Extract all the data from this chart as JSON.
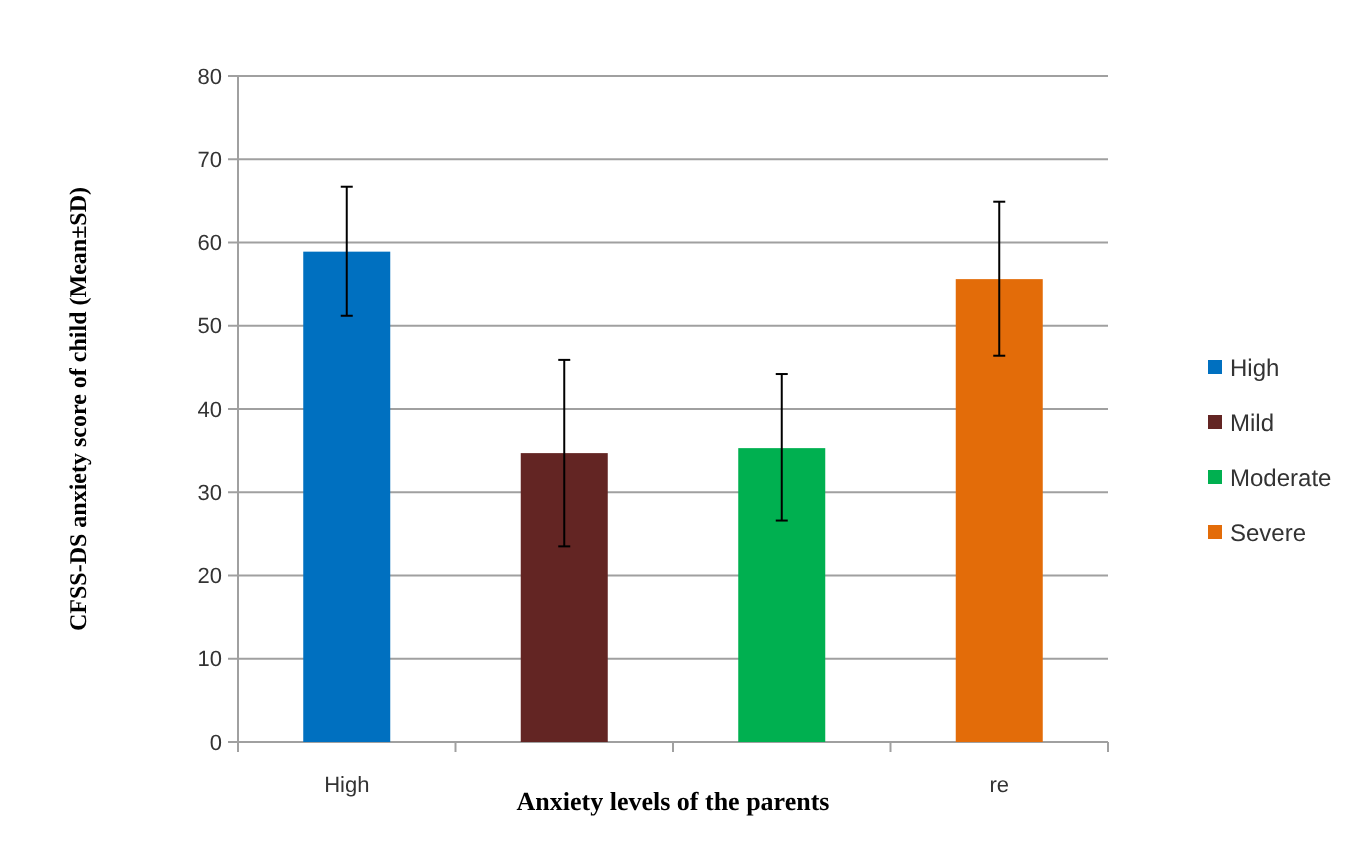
{
  "chart_data": {
    "type": "bar",
    "xlabel": "Anxiety levels of the parents",
    "ylabel": "CFSS-DS anxiety score of child (Mean±SD)",
    "categories": [
      "High",
      null,
      null,
      "re"
    ],
    "series": [
      {
        "name": "High",
        "color": "#0070c0",
        "values": [
          58.9,
          null,
          null,
          null
        ],
        "errors": [
          [
            51.2,
            66.7
          ],
          null,
          null,
          null
        ]
      },
      {
        "name": "Mild",
        "color": "#632523",
        "values": [
          null,
          34.7,
          null,
          null
        ],
        "errors": [
          null,
          [
            23.5,
            45.9
          ],
          null,
          null
        ]
      },
      {
        "name": "Moderate",
        "color": "#00b050",
        "values": [
          null,
          null,
          35.3,
          null
        ],
        "errors": [
          null,
          null,
          [
            26.6,
            44.2
          ],
          null
        ]
      },
      {
        "name": "Severe",
        "color": "#e36c09",
        "values": [
          null,
          null,
          null,
          55.6
        ],
        "errors": [
          null,
          null,
          null,
          [
            46.4,
            64.9
          ]
        ]
      }
    ],
    "ylim": [
      0,
      80
    ],
    "yticks": [
      0,
      10,
      20,
      30,
      40,
      50,
      60,
      70,
      80
    ],
    "grid": "y",
    "legend": "right"
  }
}
